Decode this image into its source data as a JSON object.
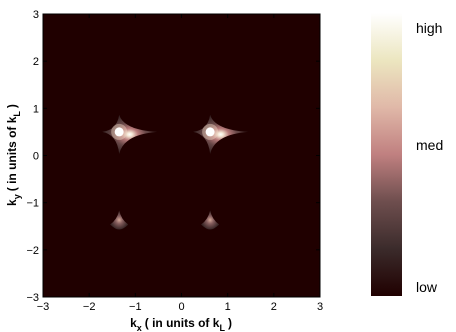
{
  "chart_data": {
    "type": "heatmap",
    "x": {
      "label_parts": [
        "k",
        "x",
        "( in units of k",
        "L",
        ")"
      ],
      "range": [
        -3,
        3
      ],
      "ticks": [
        -3,
        -2,
        -1,
        0,
        1,
        2,
        3
      ],
      "tick_labels": [
        "−3",
        "−2",
        "−1",
        "0",
        "1",
        "2",
        "3"
      ]
    },
    "y": {
      "label_parts": [
        "k",
        "y",
        "( in units of k",
        "L",
        ")"
      ],
      "range": [
        -3,
        3
      ],
      "ticks": [
        -3,
        -2,
        -1,
        0,
        1,
        2,
        3
      ],
      "tick_labels": [
        "−3",
        "−2",
        "−1",
        "0",
        "1",
        "2",
        "3"
      ]
    },
    "colormap": {
      "stops": [
        "#200000",
        "#3b2b2b",
        "#6e4e4e",
        "#c08080",
        "#e0b8a8",
        "#ece6c0",
        "#ffffff"
      ],
      "background": "#200000"
    },
    "colorbar": {
      "labels": [
        "high",
        "med",
        "low"
      ]
    },
    "peaks": [
      {
        "x": -1.35,
        "y": 0.5,
        "intensity": 1.0,
        "shape": "star"
      },
      {
        "x": 0.62,
        "y": 0.5,
        "intensity": 1.0,
        "shape": "star"
      },
      {
        "x": -1.35,
        "y": -1.4,
        "intensity": 0.45,
        "shape": "drop"
      },
      {
        "x": 0.62,
        "y": -1.4,
        "intensity": 0.45,
        "shape": "drop"
      }
    ],
    "grid": false
  }
}
